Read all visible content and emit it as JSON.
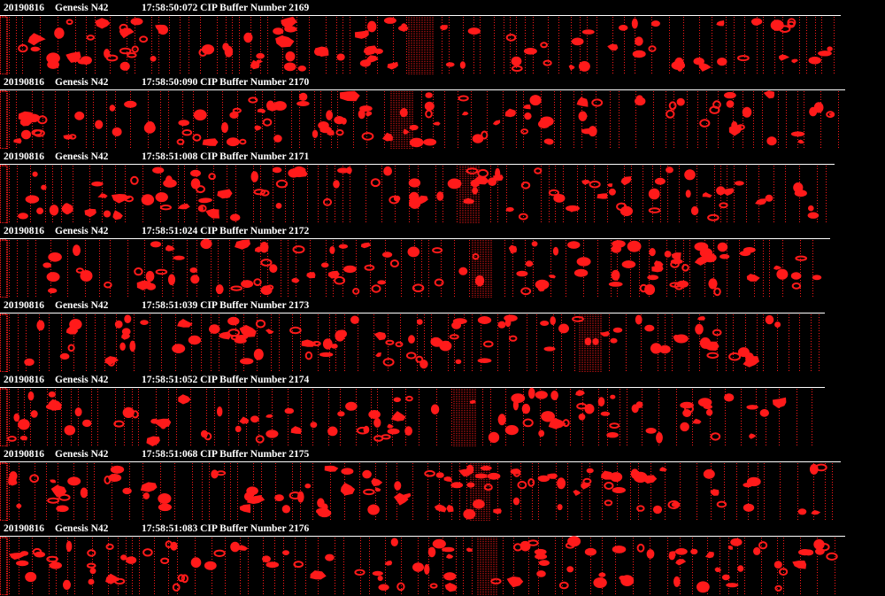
{
  "colors": {
    "background": "#000000",
    "particle": "#ff1a1a",
    "text": "#ffffff",
    "rule": "#ffffff"
  },
  "buffers": [
    {
      "date": "20190816",
      "probe": "Genesis N42",
      "time": "17:58:50:072",
      "label": "CIP Buffer Number 2169"
    },
    {
      "date": "20190816",
      "probe": "Genesis N42",
      "time": "17:58:50:090",
      "label": "CIP Buffer Number 2170"
    },
    {
      "date": "20190816",
      "probe": "Genesis N42",
      "time": "17:58:51:008",
      "label": "CIP Buffer Number 2171"
    },
    {
      "date": "20190816",
      "probe": "Genesis N42",
      "time": "17:58:51:024",
      "label": "CIP Buffer Number 2172"
    },
    {
      "date": "20190816",
      "probe": "Genesis N42",
      "time": "17:58:51:039",
      "label": "CIP Buffer Number 2173"
    },
    {
      "date": "20190816",
      "probe": "Genesis N42",
      "time": "17:58:51:052",
      "label": "CIP Buffer Number 2174"
    },
    {
      "date": "20190816",
      "probe": "Genesis N42",
      "time": "17:58:51:068",
      "label": "CIP Buffer Number 2175"
    },
    {
      "date": "20190816",
      "probe": "Genesis N42",
      "time": "17:58:51:083",
      "label": "CIP Buffer Number 2176"
    }
  ]
}
